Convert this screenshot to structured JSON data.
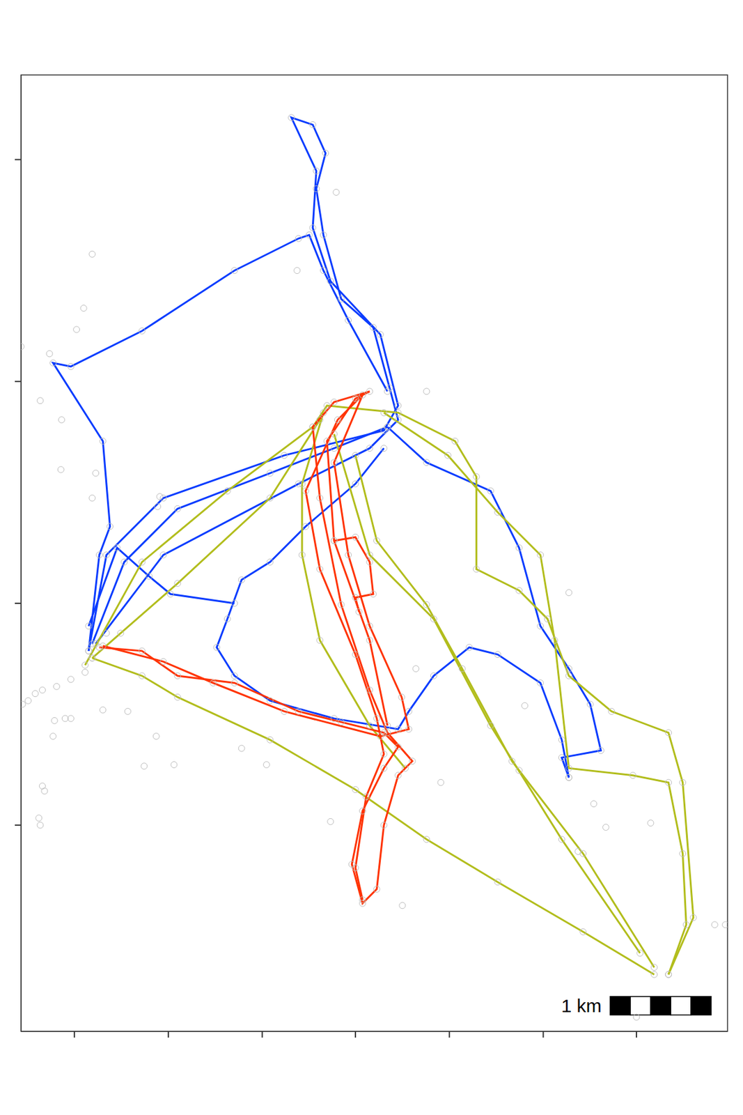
{
  "chart_data": {
    "type": "line",
    "tick_labels": false,
    "xlim": [
      30,
      1023
    ],
    "xticks": [
      105,
      237,
      369,
      500,
      632,
      764,
      895
    ],
    "ylim": [
      50,
      1395
    ],
    "yticks": [
      340,
      652,
      964,
      1276
    ],
    "scale_bar": {
      "label": "1 km",
      "x": 858,
      "y": 73,
      "length": 142,
      "height": 26,
      "segments": 5
    },
    "series": [
      {
        "type": "line",
        "color": "#0a3cff",
        "marker": "circle",
        "x": [
          125,
          150,
          230,
          400,
          540,
          560,
          535,
          465,
          440,
          445,
          410,
          440,
          458,
          445,
          455,
          480,
          525,
          548,
          560,
          520,
          420,
          230,
          135
        ],
        "y": [
          585,
          720,
          800,
          860,
          895,
          930,
          1030,
          1105,
          1180,
          1260,
          1335,
          1325,
          1285,
          1235,
          1170,
          1080,
          1040,
          955,
          910,
          870,
          820,
          720,
          595
        ]
      },
      {
        "type": "line",
        "color": "#0a3cff",
        "marker": "circle",
        "x": [
          125,
          140,
          155,
          145,
          75,
          100,
          200,
          330,
          420,
          435,
          455,
          490,
          545
        ],
        "y": [
          585,
          720,
          760,
          880,
          990,
          985,
          1035,
          1120,
          1165,
          1170,
          1120,
          1050,
          950
        ]
      },
      {
        "type": "line",
        "color": "#0a3cff",
        "marker": "circle",
        "x": [
          545,
          600,
          690,
          730,
          760,
          800,
          830,
          845,
          790,
          800
        ],
        "y": [
          900,
          850,
          810,
          730,
          620,
          560,
          510,
          445,
          435,
          407
        ]
      },
      {
        "type": "line",
        "color": "#0a3cff",
        "marker": "circle",
        "x": [
          800,
          790,
          760,
          700,
          660,
          610,
          575,
          560,
          470,
          380,
          330,
          305,
          320,
          340,
          380,
          430,
          500,
          540
        ],
        "y": [
          407,
          460,
          540,
          580,
          590,
          550,
          500,
          475,
          490,
          515,
          550,
          590,
          630,
          685,
          710,
          760,
          820,
          870
        ]
      },
      {
        "type": "line",
        "color": "#0a3cff",
        "marker": "circle",
        "x": [
          130,
          175,
          250,
          380,
          470,
          545
        ],
        "y": [
          595,
          710,
          785,
          835,
          870,
          900
        ]
      },
      {
        "type": "line",
        "color": "#0a3cff",
        "marker": "circle",
        "x": [
          125,
          165,
          210,
          240,
          330
        ],
        "y": [
          620,
          730,
          690,
          665,
          652
        ]
      },
      {
        "type": "line",
        "color": "#b2bd1c",
        "marker": "circle",
        "x": [
          120,
          200,
          320,
          440,
          460,
          560,
          640,
          670,
          670,
          730,
          770,
          800,
          860,
          940,
          960,
          975,
          940
        ],
        "y": [
          565,
          710,
          810,
          900,
          930,
          920,
          880,
          830,
          700,
          670,
          630,
          550,
          500,
          470,
          400,
          210,
          130
        ]
      },
      {
        "type": "line",
        "color": "#b2bd1c",
        "marker": "circle",
        "x": [
          920,
          820,
          700,
          600,
          500,
          380,
          250,
          200,
          130
        ],
        "y": [
          130,
          190,
          260,
          320,
          390,
          460,
          520,
          550,
          575
        ]
      },
      {
        "type": "line",
        "color": "#b2bd1c",
        "marker": "circle",
        "x": [
          500,
          530,
          600,
          650,
          720,
          820,
          920
        ],
        "y": [
          860,
          740,
          650,
          560,
          430,
          300,
          140
        ]
      },
      {
        "type": "line",
        "color": "#b2bd1c",
        "marker": "circle",
        "x": [
          470,
          520,
          610,
          690,
          790,
          900
        ],
        "y": [
          890,
          720,
          630,
          480,
          320,
          160
        ]
      },
      {
        "type": "line",
        "color": "#b2bd1c",
        "marker": "circle",
        "x": [
          540,
          630,
          700,
          760,
          780,
          800,
          890,
          940,
          960,
          965,
          940
        ],
        "y": [
          920,
          860,
          780,
          720,
          600,
          420,
          410,
          400,
          300,
          200,
          130
        ]
      },
      {
        "type": "line",
        "color": "#b2bd1c",
        "marker": "circle",
        "x": [
          130,
          250,
          380,
          450
        ],
        "y": [
          575,
          680,
          800,
          910
        ]
      },
      {
        "type": "line",
        "color": "#b2bd1c",
        "marker": "circle",
        "x": [
          455,
          425,
          425,
          450,
          520,
          570
        ],
        "y": [
          920,
          820,
          720,
          600,
          480,
          420
        ]
      },
      {
        "type": "line",
        "color": "#ff3300",
        "marker": "circle",
        "x": [
          140,
          200,
          250,
          330,
          420,
          480,
          540,
          560,
          540,
          510,
          495,
          510,
          530,
          540,
          560,
          580,
          545,
          520,
          480,
          450,
          440,
          470,
          520,
          500,
          460,
          470,
          520,
          545
        ],
        "y": [
          590,
          585,
          550,
          540,
          500,
          485,
          470,
          450,
          420,
          360,
          285,
          230,
          250,
          340,
          410,
          430,
          470,
          530,
          650,
          800,
          900,
          935,
          950,
          940,
          880,
          740,
          600,
          480
        ]
      },
      {
        "type": "line",
        "color": "#ff3300",
        "marker": "circle",
        "x": [
          145,
          230,
          300,
          400,
          535,
          575,
          565,
          520,
          490,
          470,
          510,
          475,
          430,
          450,
          500,
          530,
          540,
          515,
          500,
          510
        ],
        "y": [
          592,
          570,
          540,
          500,
          465,
          475,
          520,
          620,
          720,
          850,
          945,
          910,
          810,
          700,
          580,
          490,
          440,
          380,
          280,
          235
        ]
      },
      {
        "type": "line",
        "color": "#ff3300",
        "marker": "circle",
        "x": [
          470,
          500,
          520,
          525,
          500,
          505
        ],
        "y": [
          740,
          745,
          710,
          665,
          660,
          640
        ]
      },
      {
        "type": "scatter",
        "color": "#bdbdbd",
        "marker": "circle",
        "x": [
          130,
          118,
          108,
          57,
          87,
          86,
          135,
          130,
          70,
          30,
          473,
          418,
          600,
          800,
          852,
          915,
          813,
          738,
          585,
          203,
          245,
          220,
          145,
          180,
          60,
          63,
          57,
          55,
          75,
          77,
          92,
          100,
          375,
          340,
          465,
          566,
          895,
          1020,
          1005,
          835,
          730,
          620,
          120,
          80,
          50,
          40,
          32,
          60,
          100,
          170,
          150,
          225,
          222
        ],
        "y": [
          1143,
          1067,
          1037,
          937,
          910,
          840,
          835,
          800,
          1003,
          1013,
          1230,
          1120,
          950,
          667,
          337,
          343,
          303,
          508,
          560,
          423,
          425,
          465,
          502,
          500,
          395,
          388,
          340,
          350,
          465,
          487,
          490,
          490,
          425,
          448,
          345,
          227,
          70,
          200,
          200,
          370,
          417,
          400,
          555,
          535,
          525,
          515,
          510,
          530,
          545,
          610,
          610,
          802,
          788
        ]
      }
    ]
  }
}
